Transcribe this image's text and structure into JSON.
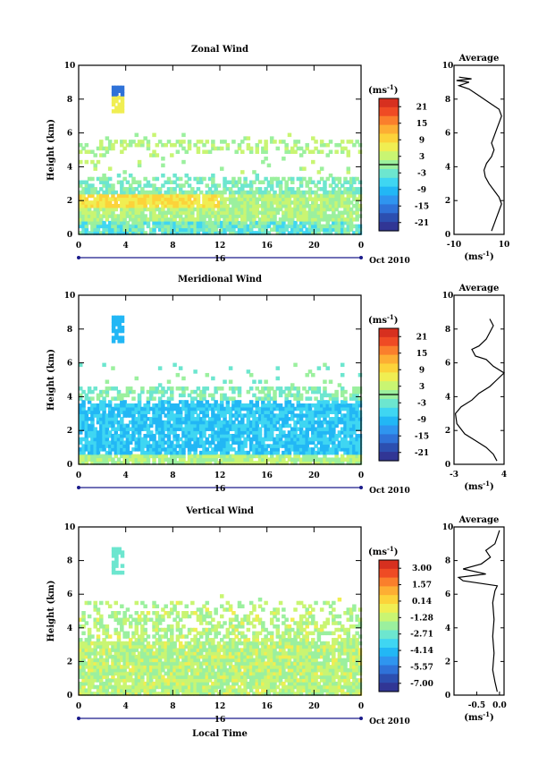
{
  "figure": {
    "xlabel": "Local Time",
    "date_label": "Oct 2010",
    "day_label": "16",
    "ylabel": "Height (km)",
    "average_title": "Average",
    "unit_label": "(ms",
    "unit_exp": "-1",
    "unit_close": ")"
  },
  "colormap": [
    "#313695",
    "#2c4fb0",
    "#2f72d8",
    "#2f95ef",
    "#22b7f5",
    "#3fd6f2",
    "#6de6cf",
    "#9bf09e",
    "#c9f572",
    "#f0ee52",
    "#fcd33a",
    "#fdae33",
    "#fa7f2c",
    "#ef4b24",
    "#d7301f"
  ],
  "chart_data": [
    {
      "type": "heatmap",
      "title": "Zonal Wind",
      "x_ticks": [
        "0",
        "4",
        "8",
        "12",
        "16",
        "20",
        "0"
      ],
      "xlim": [
        0,
        24
      ],
      "y_ticks": [
        "0",
        "2",
        "4",
        "6",
        "8",
        "10"
      ],
      "ylim": [
        0,
        10
      ],
      "colorbar_ticks": [
        "21",
        "15",
        "9",
        "3",
        "-3",
        "-9",
        "-15",
        "-21"
      ],
      "colorbar_range": [
        -24,
        24
      ],
      "colorbar_zero_line": true,
      "profile": {
        "x_ticks": [
          "-10",
          "10"
        ],
        "xlim": [
          -10,
          10
        ],
        "points": [
          [
            5,
            0.2
          ],
          [
            6,
            0.6
          ],
          [
            7,
            1.0
          ],
          [
            8,
            1.4
          ],
          [
            9,
            1.8
          ],
          [
            8,
            2.2
          ],
          [
            6,
            2.6
          ],
          [
            4,
            3.0
          ],
          [
            2.5,
            3.4
          ],
          [
            2,
            3.8
          ],
          [
            3,
            4.2
          ],
          [
            5,
            4.6
          ],
          [
            6,
            5.0
          ],
          [
            5,
            5.4
          ],
          [
            6,
            5.8
          ],
          [
            7,
            6.2
          ],
          [
            8,
            6.6
          ],
          [
            9,
            7.0
          ],
          [
            8,
            7.4
          ],
          [
            4,
            7.8
          ],
          [
            0,
            8.2
          ],
          [
            -4,
            8.6
          ],
          [
            -8,
            8.8
          ],
          [
            -4,
            9.0
          ],
          [
            -9,
            9.1
          ],
          [
            -3,
            9.2
          ],
          [
            -8,
            9.3
          ]
        ]
      }
    },
    {
      "type": "heatmap",
      "title": "Meridional Wind",
      "x_ticks": [
        "0",
        "4",
        "8",
        "12",
        "16",
        "20",
        "0"
      ],
      "xlim": [
        0,
        24
      ],
      "y_ticks": [
        "0",
        "2",
        "4",
        "6",
        "8",
        "10"
      ],
      "ylim": [
        0,
        10
      ],
      "colorbar_ticks": [
        "21",
        "15",
        "9",
        "3",
        "-3",
        "-9",
        "-15",
        "-21"
      ],
      "colorbar_range": [
        -24,
        24
      ],
      "colorbar_zero_line": true,
      "profile": {
        "x_ticks": [
          "-3",
          "4"
        ],
        "xlim": [
          -3,
          4
        ],
        "points": [
          [
            3,
            0.2
          ],
          [
            2.5,
            0.6
          ],
          [
            1.5,
            1.0
          ],
          [
            0,
            1.4
          ],
          [
            -1.5,
            1.8
          ],
          [
            -2.6,
            2.4
          ],
          [
            -2.8,
            3.0
          ],
          [
            -2,
            3.4
          ],
          [
            -0.5,
            3.8
          ],
          [
            0.5,
            4.2
          ],
          [
            2,
            4.6
          ],
          [
            3,
            5.0
          ],
          [
            4,
            5.4
          ],
          [
            2.5,
            5.8
          ],
          [
            1.5,
            6.2
          ],
          [
            0,
            6.4
          ],
          [
            -0.5,
            6.8
          ],
          [
            0.5,
            7.0
          ],
          [
            1.5,
            7.4
          ],
          [
            2,
            7.8
          ],
          [
            2.5,
            8.2
          ],
          [
            2,
            8.6
          ]
        ]
      }
    },
    {
      "type": "heatmap",
      "title": "Vertical Wind",
      "x_ticks": [
        "0",
        "4",
        "8",
        "12",
        "16",
        "20",
        "0"
      ],
      "xlim": [
        0,
        24
      ],
      "y_ticks": [
        "0",
        "2",
        "4",
        "6",
        "8",
        "10"
      ],
      "ylim": [
        0,
        10
      ],
      "colorbar_ticks": [
        "3.00",
        "1.57",
        "0.14",
        "-1.28",
        "-2.71",
        "-4.14",
        "-5.57",
        "-7.00"
      ],
      "colorbar_range": [
        -7.5,
        3.5
      ],
      "colorbar_zero_line": false,
      "profile": {
        "x_ticks": [
          "-0.5",
          "0.0"
        ],
        "xlim": [
          -1.0,
          0.1
        ],
        "points": [
          [
            -0.05,
            0.2
          ],
          [
            -0.1,
            0.8
          ],
          [
            -0.15,
            1.5
          ],
          [
            -0.12,
            2.5
          ],
          [
            -0.15,
            3.5
          ],
          [
            -0.12,
            4.5
          ],
          [
            -0.15,
            5.5
          ],
          [
            -0.1,
            6.2
          ],
          [
            -0.05,
            6.5
          ],
          [
            -0.8,
            6.8
          ],
          [
            -0.9,
            7.0
          ],
          [
            -0.3,
            7.2
          ],
          [
            -0.8,
            7.5
          ],
          [
            -0.4,
            7.8
          ],
          [
            -0.2,
            8.2
          ],
          [
            -0.3,
            8.6
          ],
          [
            -0.1,
            9.0
          ],
          [
            -0.05,
            9.4
          ],
          [
            0,
            9.8
          ]
        ]
      }
    }
  ]
}
